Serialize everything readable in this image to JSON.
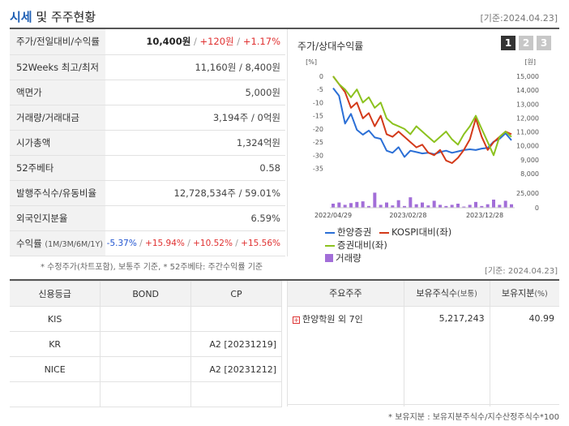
{
  "header": {
    "title_main": "시세",
    "title_rest": " 및 주주현황",
    "base_date": "[기준:2024.04.23]"
  },
  "quote": {
    "rows": [
      {
        "label": "주가/전일대비/수익률",
        "price": "10,400원",
        "change": "+120원",
        "rate": "+1.17%"
      },
      {
        "label": "52Weeks 최고/최저",
        "value": "11,160원 / 8,400원"
      },
      {
        "label": "액면가",
        "value": "5,000원"
      },
      {
        "label": "거래량/거래대금",
        "value": "3,194주 / 0억원"
      },
      {
        "label": "시가총액",
        "value": "1,324억원"
      },
      {
        "label": "52주베타",
        "value": "0.58"
      },
      {
        "label": "발행주식수/유동비율",
        "value": "12,728,534주 / 59.01%"
      },
      {
        "label": "외국인지분율",
        "value": "6.59%"
      },
      {
        "label": "수익률",
        "label_sub": "(1M/3M/6M/1Y)",
        "r1": "-5.37%",
        "r2": "+15.94%",
        "r3": "+10.52%",
        "r4": "+15.56%"
      }
    ],
    "footnote": "* 수정주가(차트포함), 보통주 기준, * 52주베타: 주간수익률 기준"
  },
  "chart": {
    "title": "주가/상대수익률",
    "period_buttons": [
      "1",
      "2",
      "3"
    ],
    "active_period": "1",
    "legend": {
      "stock": "한양증권",
      "kospi": "KOSPI대비(좌)",
      "sector": "증권대비(좌)",
      "volume": "거래량"
    },
    "colors": {
      "stock": "#2b6fd6",
      "kospi": "#d33a1a",
      "sector": "#8cc21f",
      "volume": "#a26ed8"
    }
  },
  "chart_data": {
    "type": "line",
    "title": "주가/상대수익률",
    "left_axis_unit": "[%]",
    "right_axis_unit": "[원]",
    "left_ticks": [
      "0",
      "-5",
      "-10",
      "-15",
      "-20",
      "-25",
      "-30",
      "-35"
    ],
    "right_ticks": [
      "15,000",
      "14,000",
      "13,000",
      "12,000",
      "11,000",
      "10,000",
      "9,000",
      "8,000"
    ],
    "volume_ticks": [
      "25,000",
      "0"
    ],
    "x_labels": [
      "2022/04/29",
      "2023/02/28",
      "2023/12/28"
    ],
    "ylim_left": [
      -37,
      0
    ],
    "ylim_right": [
      8000,
      15000
    ],
    "series": [
      {
        "name": "한양증권",
        "axis": "right",
        "values": [
          14150,
          13600,
          11600,
          12300,
          11150,
          10800,
          11100,
          10600,
          10500,
          9650,
          9500,
          9900,
          9200,
          9650,
          9550,
          9450,
          9500,
          9400,
          9550,
          9650,
          9500,
          9600,
          9700,
          9750,
          9700,
          9800,
          9850,
          10300,
          10500,
          10900,
          10400
        ]
      },
      {
        "name": "KOSPI대비(좌)",
        "axis": "left",
        "values": [
          0,
          -3,
          -6,
          -12,
          -10,
          -16,
          -14,
          -19,
          -15,
          -22,
          -23,
          -21,
          -23,
          -25,
          -27,
          -26,
          -29,
          -30,
          -28,
          -32,
          -33,
          -31,
          -28,
          -24,
          -16,
          -23,
          -28,
          -25,
          -23,
          -21,
          -22
        ]
      },
      {
        "name": "증권대비(좌)",
        "axis": "left",
        "values": [
          0,
          -3,
          -5,
          -8,
          -5,
          -10,
          -8,
          -12,
          -10,
          -16,
          -18,
          -19,
          -20,
          -22,
          -19,
          -21,
          -23,
          -25,
          -23,
          -21,
          -24,
          -26,
          -22,
          -19,
          -15,
          -20,
          -25,
          -30,
          -23,
          -21,
          -23
        ]
      },
      {
        "name": "거래량",
        "axis": "volume",
        "values": [
          7000,
          9000,
          5000,
          8000,
          10000,
          11000,
          3000,
          26000,
          5000,
          9000,
          4000,
          13000,
          3000,
          18000,
          6000,
          9000,
          4000,
          12000,
          5000,
          3000,
          5000,
          7000,
          2000,
          5000,
          10000,
          3000,
          6000,
          14000,
          5000,
          12000,
          6000
        ]
      }
    ]
  },
  "credit": {
    "headers": [
      "신용등급",
      "BOND",
      "CP"
    ],
    "rows": [
      {
        "agency": "KIS",
        "bond": "",
        "cp": ""
      },
      {
        "agency": "KR",
        "bond": "",
        "cp": "A2 [20231219]"
      },
      {
        "agency": "NICE",
        "bond": "",
        "cp": "A2 [20231212]"
      },
      {
        "agency": "",
        "bond": "",
        "cp": ""
      }
    ]
  },
  "holders": {
    "base_date": "[기준: 2024.04.23]",
    "headers": {
      "name": "주요주주",
      "shares": "보유주식수",
      "shares_unit": "(보통)",
      "ratio": "보유지분",
      "ratio_unit": "(%)"
    },
    "rows": [
      {
        "name": "한양학원 외 7인",
        "shares": "5,217,243",
        "ratio": "40.99"
      }
    ],
    "footnote": "* 보유지분 : 보유지분주식수/지수산정주식수*100"
  }
}
